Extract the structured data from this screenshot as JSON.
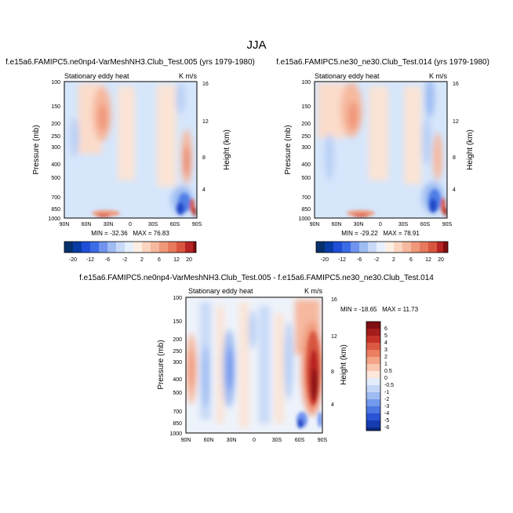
{
  "figure": {
    "title": "JJA"
  },
  "chart_data": [
    {
      "type": "heatmap",
      "title": "f.e15a6.FAMIPC5.ne0np4-VarMeshNH3.Club_Test.005 (yrs 1979-1980)",
      "left_label": "Stationary eddy heat",
      "units": "K m/s",
      "ylabel": "Pressure (mb)",
      "y2label": "Height (km)",
      "x_ticks": [
        "90N",
        "60N",
        "30N",
        "0",
        "30S",
        "60S",
        "90S"
      ],
      "y_ticks": [
        "100",
        "150",
        "200",
        "250",
        "300",
        "400",
        "500",
        "700",
        "850",
        "1000"
      ],
      "y2_ticks": [
        "16",
        "12",
        "8",
        "4"
      ],
      "ylim": [
        1000,
        100
      ],
      "stats": "MIN = -32.36   MAX = 76.83",
      "colorbar_labels": [
        "-20",
        "-12",
        "-6",
        "-2",
        "2",
        "6",
        "12",
        "20"
      ]
    },
    {
      "type": "heatmap",
      "title": "f.e15a6.FAMIPC5.ne30_ne30.Club_Test.014 (yrs 1979-1980)",
      "left_label": "Stationary eddy heat",
      "units": "K m/s",
      "ylabel": "Pressure (mb)",
      "y2label": "Height (km)",
      "x_ticks": [
        "90N",
        "60N",
        "30N",
        "0",
        "30S",
        "60S",
        "90S"
      ],
      "y_ticks": [
        "100",
        "150",
        "200",
        "250",
        "300",
        "400",
        "500",
        "700",
        "850",
        "1000"
      ],
      "y2_ticks": [
        "16",
        "12",
        "8",
        "4"
      ],
      "ylim": [
        1000,
        100
      ],
      "stats": "MIN = -29.22   MAX = 78.91",
      "colorbar_labels": [
        "-20",
        "-12",
        "-6",
        "-2",
        "2",
        "6",
        "12",
        "20"
      ]
    },
    {
      "type": "heatmap",
      "title": "f.e15a6.FAMIPC5.ne0np4-VarMeshNH3.Club_Test.005 - f.e15a6.FAMIPC5.ne30_ne30.Club_Test.014",
      "left_label": "Stationary eddy heat",
      "units": "K m/s",
      "ylabel": "Pressure (mb)",
      "y2label": "Height (km)",
      "x_ticks": [
        "90N",
        "60N",
        "30N",
        "0",
        "30S",
        "60S",
        "90S"
      ],
      "y_ticks": [
        "100",
        "150",
        "200",
        "250",
        "300",
        "400",
        "500",
        "700",
        "850",
        "1000"
      ],
      "y2_ticks": [
        "16",
        "12",
        "8",
        "4"
      ],
      "ylim": [
        1000,
        100
      ],
      "stats": "MIN = -18.65   MAX = 11.73",
      "colorbar_labels": [
        "6",
        "5",
        "4",
        "3",
        "2",
        "1",
        "0.5",
        "0",
        "-0.5",
        "-1",
        "-2",
        "-3",
        "-4",
        "-5",
        "-6"
      ]
    }
  ]
}
